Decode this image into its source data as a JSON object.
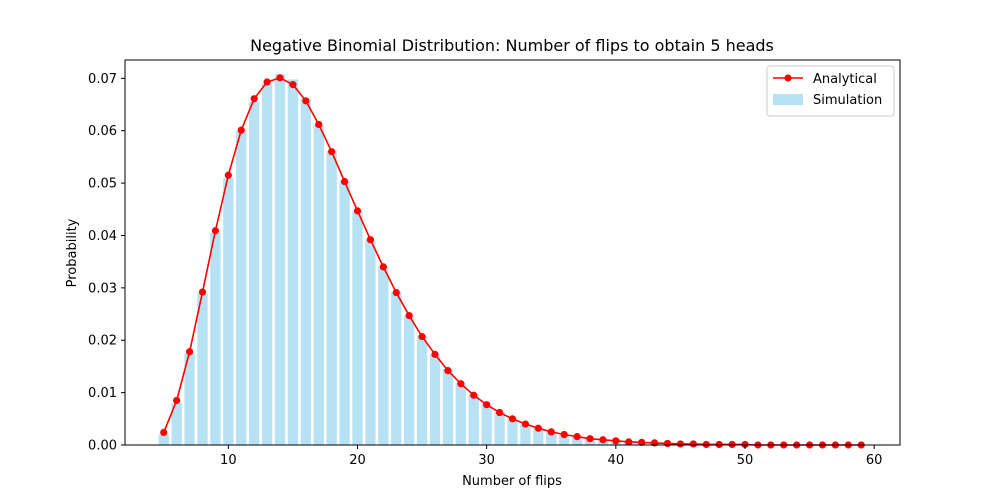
{
  "chart_data": {
    "type": "bar",
    "title": "Negative Binomial Distribution: Number of flips to obtain 5 heads",
    "xlabel": "Number of flips",
    "ylabel": "Probability",
    "xlim": [
      2,
      62
    ],
    "ylim": [
      0,
      0.0735
    ],
    "xticks": [
      10,
      20,
      30,
      40,
      50,
      60
    ],
    "yticks": [
      0.0,
      0.01,
      0.02,
      0.03,
      0.04,
      0.05,
      0.06,
      0.07
    ],
    "ytick_labels": [
      "0.00",
      "0.01",
      "0.02",
      "0.03",
      "0.04",
      "0.05",
      "0.06",
      "0.07"
    ],
    "legend_position": "top-right",
    "x": [
      5,
      6,
      7,
      8,
      9,
      10,
      11,
      12,
      13,
      14,
      15,
      16,
      17,
      18,
      19,
      20,
      21,
      22,
      23,
      24,
      25,
      26,
      27,
      28,
      29,
      30,
      31,
      32,
      33,
      34,
      35,
      36,
      37,
      38,
      39,
      40,
      41,
      42,
      43,
      44,
      45,
      46,
      47,
      48,
      49,
      50,
      51,
      52,
      53,
      54,
      55,
      56,
      57,
      58,
      59
    ],
    "series": [
      {
        "name": "Simulation",
        "kind": "bar",
        "color": "#87ceeb",
        "values": [
          0.002,
          0.008,
          0.0175,
          0.029,
          0.0405,
          0.051,
          0.06,
          0.0655,
          0.069,
          0.0708,
          0.0698,
          0.0662,
          0.0612,
          0.0562,
          0.0505,
          0.0447,
          0.0392,
          0.034,
          0.0292,
          0.0246,
          0.0208,
          0.0173,
          0.0145,
          0.0118,
          0.0097,
          0.0078,
          0.0063,
          0.005,
          0.004,
          0.0032,
          0.0025,
          0.0019,
          0.0015,
          0.0012,
          0.0009,
          0.0007,
          0.0005,
          0.0004,
          0.0003,
          0.0002,
          0.0002,
          0.0001,
          0.0001,
          0.0001,
          0.0001,
          0.0,
          0.0,
          0.0,
          0.0,
          0.0,
          0.0,
          0.0,
          0.0,
          0.0,
          0.0
        ]
      },
      {
        "name": "Analytical",
        "kind": "line",
        "color": "#ff0000",
        "values": [
          0.0024,
          0.0085,
          0.0178,
          0.0292,
          0.0409,
          0.0515,
          0.0601,
          0.0661,
          0.0693,
          0.0701,
          0.0688,
          0.0657,
          0.0612,
          0.056,
          0.0503,
          0.0447,
          0.0392,
          0.034,
          0.0291,
          0.0247,
          0.0207,
          0.0173,
          0.0142,
          0.0117,
          0.0095,
          0.0077,
          0.0062,
          0.005,
          0.004,
          0.0032,
          0.0025,
          0.002,
          0.0016,
          0.0012,
          0.001,
          0.0008,
          0.0006,
          0.0005,
          0.0004,
          0.0003,
          0.0002,
          0.0002,
          0.0001,
          0.0001,
          0.0001,
          0.0001,
          0.0,
          0.0,
          0.0,
          0.0,
          0.0,
          0.0,
          0.0,
          0.0,
          0.0
        ]
      }
    ]
  }
}
